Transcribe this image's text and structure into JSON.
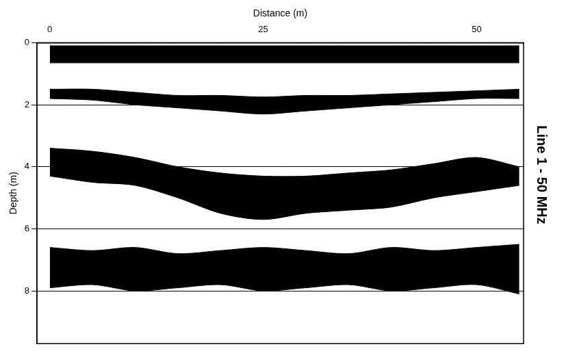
{
  "chart_data": {
    "type": "band",
    "title": "Line 1 - 50 MHz",
    "x_label": "Distance (m)",
    "y_label": "Depth (m)",
    "x": [
      0,
      5,
      10,
      15,
      20,
      25,
      30,
      35,
      40,
      45,
      50,
      55
    ],
    "bands": [
      {
        "top": [
          0.1,
          0.1,
          0.1,
          0.1,
          0.1,
          0.1,
          0.1,
          0.1,
          0.1,
          0.1,
          0.1,
          0.1
        ],
        "bottom": [
          0.65,
          0.65,
          0.65,
          0.65,
          0.65,
          0.65,
          0.65,
          0.65,
          0.65,
          0.65,
          0.65,
          0.65
        ]
      },
      {
        "top": [
          1.5,
          1.5,
          1.6,
          1.7,
          1.7,
          1.75,
          1.7,
          1.7,
          1.65,
          1.6,
          1.55,
          1.5
        ],
        "bottom": [
          1.8,
          1.85,
          2.0,
          2.1,
          2.2,
          2.3,
          2.2,
          2.1,
          2.0,
          1.9,
          1.8,
          1.8
        ]
      },
      {
        "top": [
          3.4,
          3.5,
          3.7,
          4.0,
          4.2,
          4.3,
          4.3,
          4.2,
          4.1,
          3.9,
          3.7,
          4.0
        ],
        "bottom": [
          4.3,
          4.5,
          4.6,
          5.0,
          5.5,
          5.7,
          5.5,
          5.4,
          5.3,
          5.0,
          4.8,
          4.6
        ]
      },
      {
        "top": [
          6.6,
          6.7,
          6.6,
          6.8,
          6.7,
          6.6,
          6.7,
          6.8,
          6.6,
          6.7,
          6.6,
          6.5
        ],
        "bottom": [
          7.9,
          7.8,
          8.0,
          7.9,
          7.8,
          8.0,
          7.9,
          7.8,
          8.0,
          7.9,
          7.8,
          8.1
        ]
      }
    ],
    "color": "#000000",
    "xlim": [
      -1.5,
      55.5
    ],
    "xticks": [
      0,
      25,
      50
    ],
    "ylim": [
      0,
      9.7
    ],
    "yticks": [
      0,
      2,
      4,
      6,
      8
    ],
    "grid": true
  }
}
